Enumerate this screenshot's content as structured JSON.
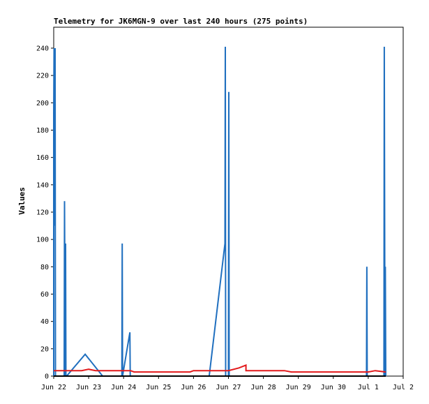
{
  "chart_data": {
    "type": "line",
    "title": "Telemetry for JK6MGN-9 over last 240 hours (275 points)",
    "ylabel": "Values",
    "xlabel": "",
    "ylim": [
      0,
      255
    ],
    "xlim": [
      0,
      10
    ],
    "yticks": [
      0,
      20,
      40,
      60,
      80,
      100,
      120,
      140,
      160,
      180,
      200,
      220,
      240
    ],
    "xticks": [
      {
        "v": 0,
        "label": "Jun 22"
      },
      {
        "v": 1,
        "label": "Jun 23"
      },
      {
        "v": 2,
        "label": "Jun 24"
      },
      {
        "v": 3,
        "label": "Jun 25"
      },
      {
        "v": 4,
        "label": "Jun 26"
      },
      {
        "v": 5,
        "label": "Jun 27"
      },
      {
        "v": 6,
        "label": "Jun 28"
      },
      {
        "v": 7,
        "label": "Jun 29"
      },
      {
        "v": 8,
        "label": "Jun 30"
      },
      {
        "v": 9,
        "label": "Jul 1"
      },
      {
        "v": 10,
        "label": "Jul 2"
      }
    ],
    "grid": false,
    "series": [
      {
        "color": "#1f6fbf",
        "x": [
          0.0,
          0.0,
          0.01,
          0.02,
          0.04,
          0.05,
          0.06,
          0.07,
          0.3,
          0.31,
          0.33,
          0.34,
          0.35,
          0.37,
          0.9,
          1.4,
          1.95,
          1.96,
          1.97,
          2.18,
          2.19,
          2.2,
          4.45,
          4.9,
          4.91,
          4.92,
          5.0,
          5.01,
          5.02,
          8.95,
          8.96,
          8.97,
          9.45,
          9.46,
          9.48,
          9.49,
          9.5
        ],
        "y": [
          0,
          192,
          240,
          110,
          240,
          0,
          0,
          0,
          0,
          128,
          0,
          97,
          0,
          0,
          16,
          0,
          0,
          97,
          0,
          32,
          0,
          0,
          0,
          97,
          241,
          0,
          0,
          208,
          0,
          0,
          80,
          0,
          0,
          241,
          0,
          80,
          0
        ]
      },
      {
        "color": "#e31a1c",
        "x": [
          0.0,
          0.3,
          0.8,
          1.0,
          1.2,
          1.5,
          2.2,
          2.3,
          3.0,
          3.5,
          3.9,
          4.0,
          4.5,
          5.0,
          5.3,
          5.5,
          5.5,
          5.6,
          6.0,
          6.6,
          6.8,
          7.0,
          7.5,
          8.0,
          8.1,
          8.6,
          8.9,
          9.0,
          9.2,
          9.5
        ],
        "y": [
          4,
          4,
          4,
          5,
          4,
          4,
          4,
          3,
          3,
          3,
          3,
          4,
          4,
          4,
          6,
          8,
          4,
          4,
          4,
          4,
          3,
          3,
          3,
          3,
          3,
          3,
          3,
          3,
          4,
          3
        ]
      },
      {
        "color": "#000000",
        "x": [
          0.0,
          9.5
        ],
        "y": [
          0,
          0
        ]
      }
    ]
  }
}
